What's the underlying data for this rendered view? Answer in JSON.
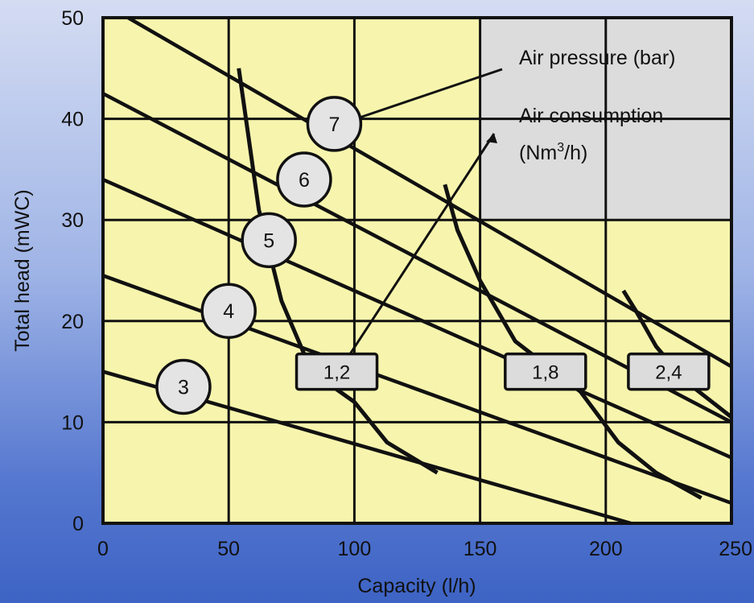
{
  "chart_data": {
    "type": "line",
    "xlabel": "Capacity (l/h)",
    "ylabel": "Total head (mWC)",
    "xlim": [
      0,
      250
    ],
    "ylim": [
      0,
      50
    ],
    "x_ticks": [
      "0",
      "50",
      "100",
      "150",
      "200",
      "250"
    ],
    "y_ticks": [
      "0",
      "10",
      "20",
      "30",
      "40",
      "50"
    ],
    "grid": true,
    "colors": {
      "plot_background": "#f7f5ad",
      "legend_panel": "#dcdcdc",
      "line": "#111111",
      "bubble_fill": "#e4e4e4"
    },
    "pressure_curves": [
      {
        "label": "3",
        "points": [
          [
            0,
            15
          ],
          [
            210,
            0
          ]
        ]
      },
      {
        "label": "4",
        "points": [
          [
            0,
            24.5
          ],
          [
            250,
            2
          ]
        ]
      },
      {
        "label": "5",
        "points": [
          [
            0,
            34
          ],
          [
            250,
            6.5
          ]
        ]
      },
      {
        "label": "6",
        "points": [
          [
            0,
            42.5
          ],
          [
            250,
            10
          ]
        ]
      },
      {
        "label": "7",
        "points": [
          [
            10,
            50
          ],
          [
            250,
            15.5
          ]
        ]
      }
    ],
    "consumption_curves": [
      {
        "label": "1,2",
        "points": [
          [
            54,
            45
          ],
          [
            58,
            38
          ],
          [
            62,
            31
          ],
          [
            71,
            22
          ],
          [
            83,
            15
          ],
          [
            100,
            12
          ],
          [
            113,
            8
          ],
          [
            133,
            5
          ]
        ]
      },
      {
        "label": "1,8",
        "points": [
          [
            136,
            33.5
          ],
          [
            141,
            29
          ],
          [
            150,
            24
          ],
          [
            164,
            18
          ],
          [
            190,
            13
          ],
          [
            205,
            8
          ],
          [
            220,
            5
          ],
          [
            238,
            2.5
          ]
        ]
      },
      {
        "label": "2,4",
        "points": [
          [
            207,
            23
          ],
          [
            212,
            21
          ],
          [
            220,
            17.5
          ],
          [
            232,
            14
          ],
          [
            250,
            10.5
          ]
        ]
      }
    ],
    "pressure_bubbles": [
      {
        "label": "7",
        "x": 92,
        "y": 39.5
      },
      {
        "label": "6",
        "x": 80,
        "y": 34
      },
      {
        "label": "5",
        "x": 66,
        "y": 28
      },
      {
        "label": "4",
        "x": 50,
        "y": 21
      },
      {
        "label": "3",
        "x": 32,
        "y": 13.5
      }
    ],
    "consumption_boxes": [
      {
        "label": "1,2",
        "x": 93,
        "y": 15
      },
      {
        "label": "1,8",
        "x": 176,
        "y": 15
      },
      {
        "label": "2,4",
        "x": 225,
        "y": 15
      }
    ],
    "legend_panel": {
      "x": [
        150,
        250
      ],
      "y": [
        30,
        50
      ]
    },
    "annotations": {
      "air_pressure": "Air pressure (bar)",
      "air_consumption_line1": "Air consumption",
      "air_consumption_line2_prefix": "(Nm",
      "air_consumption_line2_sup": "3",
      "air_consumption_line2_suffix": "/h)"
    }
  }
}
